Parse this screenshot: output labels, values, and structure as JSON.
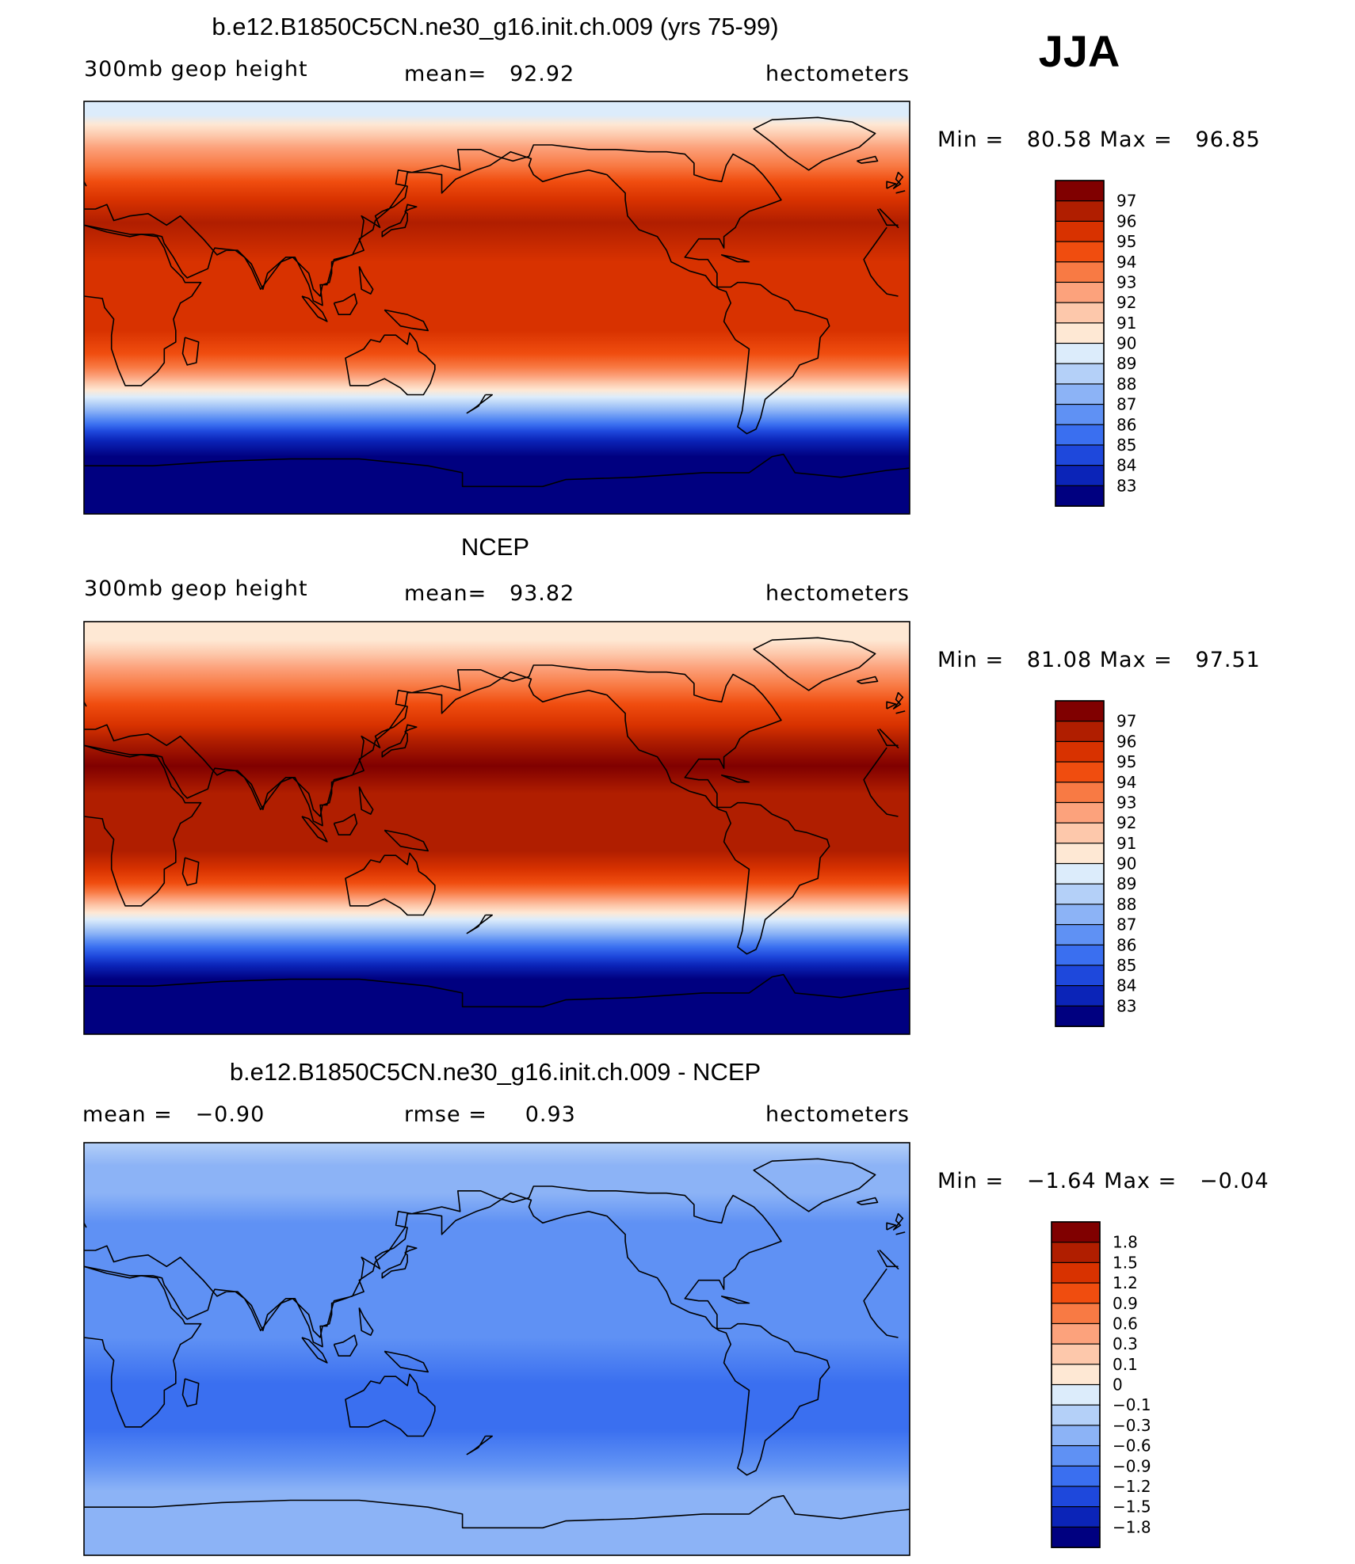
{
  "season": "JJA",
  "chart_data": [
    {
      "type": "heatmap",
      "title": "b.e12.B1850C5CN.ne30_g16.init.ch.009 (yrs 75-99)",
      "variable": "300mb geop height",
      "stat1": "mean=   92.92",
      "stat2": "",
      "units": "hectometers",
      "minmax": "Min =   80.58 Max =   96.85",
      "min": 80.58,
      "max": 96.85,
      "mean": 92.92,
      "colorbar": {
        "labels": [
          "97",
          "96",
          "95",
          "94",
          "93",
          "92",
          "91",
          "90",
          "89",
          "88",
          "87",
          "86",
          "85",
          "84",
          "83"
        ],
        "colors": [
          "#800000",
          "#b01e00",
          "#d83200",
          "#f04d0f",
          "#f87a44",
          "#fca27c",
          "#fdc8ab",
          "#fee8d4",
          "#dcecfb",
          "#b4d0f8",
          "#8cb3f6",
          "#5f91f4",
          "#3a6ff0",
          "#1e48dc",
          "#0b24b8",
          "#000080"
        ]
      },
      "bands": [
        {
          "lat": 90,
          "level": 8
        },
        {
          "lat": 84,
          "level": 8
        },
        {
          "lat": 80,
          "level": 7
        },
        {
          "lat": 75,
          "level": 6
        },
        {
          "lat": 70,
          "level": 5
        },
        {
          "lat": 62,
          "level": 4
        },
        {
          "lat": 55,
          "level": 3
        },
        {
          "lat": 47,
          "level": 2
        },
        {
          "lat": 37,
          "level": 1
        },
        {
          "lat": 20,
          "level": 2
        },
        {
          "lat": 5,
          "level": 2
        },
        {
          "lat": -10,
          "level": 2
        },
        {
          "lat": -20,
          "level": 3
        },
        {
          "lat": -26,
          "level": 4
        },
        {
          "lat": -30,
          "level": 5
        },
        {
          "lat": -33,
          "level": 6
        },
        {
          "lat": -36,
          "level": 7
        },
        {
          "lat": -39,
          "level": 8
        },
        {
          "lat": -42,
          "level": 9
        },
        {
          "lat": -45,
          "level": 10
        },
        {
          "lat": -48,
          "level": 11
        },
        {
          "lat": -51,
          "level": 12
        },
        {
          "lat": -54,
          "level": 13
        },
        {
          "lat": -58,
          "level": 14
        },
        {
          "lat": -65,
          "level": 15
        },
        {
          "lat": -90,
          "level": 15
        }
      ]
    },
    {
      "type": "heatmap",
      "title": "NCEP",
      "variable": "300mb geop height",
      "stat1": "mean=   93.82",
      "stat2": "",
      "units": "hectometers",
      "minmax": "Min =   81.08 Max =   97.51",
      "min": 81.08,
      "max": 97.51,
      "mean": 93.82,
      "colorbar": {
        "labels": [
          "97",
          "96",
          "95",
          "94",
          "93",
          "92",
          "91",
          "90",
          "89",
          "88",
          "87",
          "86",
          "85",
          "84",
          "83"
        ],
        "colors": [
          "#800000",
          "#b01e00",
          "#d83200",
          "#f04d0f",
          "#f87a44",
          "#fca27c",
          "#fdc8ab",
          "#fee8d4",
          "#dcecfb",
          "#b4d0f8",
          "#8cb3f6",
          "#5f91f4",
          "#3a6ff0",
          "#1e48dc",
          "#0b24b8",
          "#000080"
        ]
      },
      "bands": [
        {
          "lat": 90,
          "level": 7
        },
        {
          "lat": 82,
          "level": 7
        },
        {
          "lat": 76,
          "level": 6
        },
        {
          "lat": 70,
          "level": 5
        },
        {
          "lat": 62,
          "level": 4
        },
        {
          "lat": 54,
          "level": 3
        },
        {
          "lat": 45,
          "level": 2
        },
        {
          "lat": 38,
          "level": 1
        },
        {
          "lat": 27,
          "level": 0
        },
        {
          "lat": 15,
          "level": 1
        },
        {
          "lat": -10,
          "level": 1
        },
        {
          "lat": -18,
          "level": 2
        },
        {
          "lat": -24,
          "level": 3
        },
        {
          "lat": -28,
          "level": 4
        },
        {
          "lat": -31,
          "level": 5
        },
        {
          "lat": -34,
          "level": 6
        },
        {
          "lat": -37,
          "level": 7
        },
        {
          "lat": -40,
          "level": 8
        },
        {
          "lat": -43,
          "level": 9
        },
        {
          "lat": -46,
          "level": 10
        },
        {
          "lat": -49,
          "level": 11
        },
        {
          "lat": -52,
          "level": 12
        },
        {
          "lat": -56,
          "level": 13
        },
        {
          "lat": -60,
          "level": 14
        },
        {
          "lat": -66,
          "level": 15
        },
        {
          "lat": -90,
          "level": 15
        }
      ]
    },
    {
      "type": "heatmap",
      "title": "b.e12.B1850C5CN.ne30_g16.init.ch.009 - NCEP",
      "variable": "mean =   −0.90",
      "stat1": "rmse =     0.93",
      "stat2": "",
      "units": "hectometers",
      "minmax": "Min =   −1.64 Max =   −0.04",
      "min": -1.64,
      "max": -0.04,
      "mean": -0.9,
      "rmse": 0.93,
      "colorbar": {
        "labels": [
          "1.8",
          "1.5",
          "1.2",
          "0.9",
          "0.6",
          "0.3",
          "0.1",
          "0",
          "−0.1",
          "−0.3",
          "−0.6",
          "−0.9",
          "−1.2",
          "−1.5",
          "−1.8"
        ],
        "colors": [
          "#800000",
          "#b01e00",
          "#d83200",
          "#f04d0f",
          "#f87a44",
          "#fca27c",
          "#fdc8ab",
          "#fee8d4",
          "#dcecfb",
          "#b4d0f8",
          "#8cb3f6",
          "#5f91f4",
          "#3a6ff0",
          "#1e48dc",
          "#0b24b8",
          "#000080"
        ]
      },
      "bands": [
        {
          "lat": 90,
          "level": 9
        },
        {
          "lat": 80,
          "level": 10
        },
        {
          "lat": 68,
          "level": 10
        },
        {
          "lat": 55,
          "level": 11
        },
        {
          "lat": 40,
          "level": 11
        },
        {
          "lat": 25,
          "level": 11
        },
        {
          "lat": 5,
          "level": 11
        },
        {
          "lat": -15,
          "level": 12
        },
        {
          "lat": -35,
          "level": 12
        },
        {
          "lat": -50,
          "level": 11
        },
        {
          "lat": -62,
          "level": 10
        },
        {
          "lat": -72,
          "level": 10
        },
        {
          "lat": -90,
          "level": 10
        }
      ]
    }
  ]
}
